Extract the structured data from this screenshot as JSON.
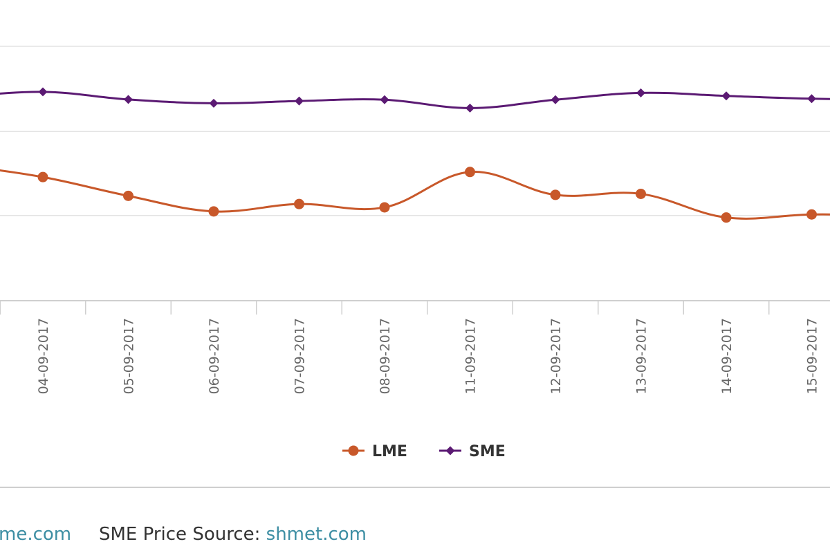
{
  "chart_data": {
    "type": "line",
    "title": "",
    "xlabel": "",
    "ylabel": "",
    "x": [
      "04-09-2017",
      "05-09-2017",
      "06-09-2017",
      "07-09-2017",
      "08-09-2017",
      "11-09-2017",
      "12-09-2017",
      "13-09-2017",
      "14-09-2017",
      "15-09-2017"
    ],
    "y_range": [
      0,
      100
    ],
    "grid": true,
    "legend_position": "bottom",
    "series": [
      {
        "name": "LME",
        "color": "#c8582a",
        "marker": "circle",
        "values": [
          48.6,
          41.2,
          35.1,
          38.0,
          36.7,
          50.6,
          41.6,
          42.0,
          32.7,
          33.9
        ],
        "leading_value": 53.5,
        "trailing_value": 33.5
      },
      {
        "name": "SME",
        "color": "#5b1a73",
        "marker": "diamond",
        "values": [
          82.1,
          79.1,
          77.6,
          78.5,
          79.0,
          75.7,
          79.0,
          81.7,
          80.5,
          79.4
        ],
        "leading_value": 80.0,
        "trailing_value": 79.1
      }
    ]
  },
  "sources": {
    "lme_link": "me.com",
    "sme_prefix": "SME Price Source: ",
    "sme_link": "shmet.com"
  }
}
